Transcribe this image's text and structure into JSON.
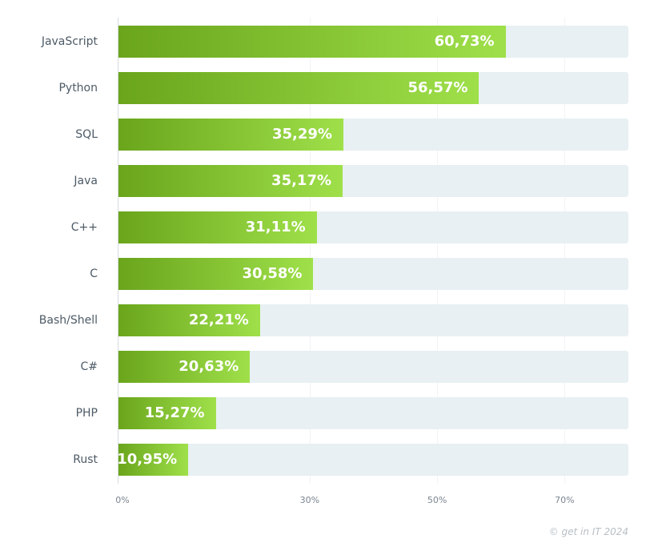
{
  "chart_data": {
    "type": "bar",
    "orientation": "horizontal",
    "categories": [
      "JavaScript",
      "Python",
      "SQL",
      "Java",
      "C++",
      "C",
      "Bash/Shell",
      "C#",
      "PHP",
      "Rust"
    ],
    "values": [
      60.73,
      56.57,
      35.29,
      35.17,
      31.11,
      30.58,
      22.21,
      20.63,
      15.27,
      10.95
    ],
    "value_labels": [
      "60,73%",
      "56,57%",
      "35,29%",
      "35,17%",
      "31,11%",
      "30,58%",
      "22,21%",
      "20,63%",
      "15,27%",
      "10,95%"
    ],
    "xlim": [
      0,
      80
    ],
    "x_ticks": [
      0,
      30,
      50,
      70
    ],
    "x_tick_labels": [
      "0%",
      "30%",
      "50%",
      "70%"
    ],
    "grid": true,
    "colors": {
      "bar_start": "#6aa51c",
      "bar_end": "#9fe04a",
      "track": "#e8f0f3"
    }
  },
  "credit": "© get in IT 2024"
}
